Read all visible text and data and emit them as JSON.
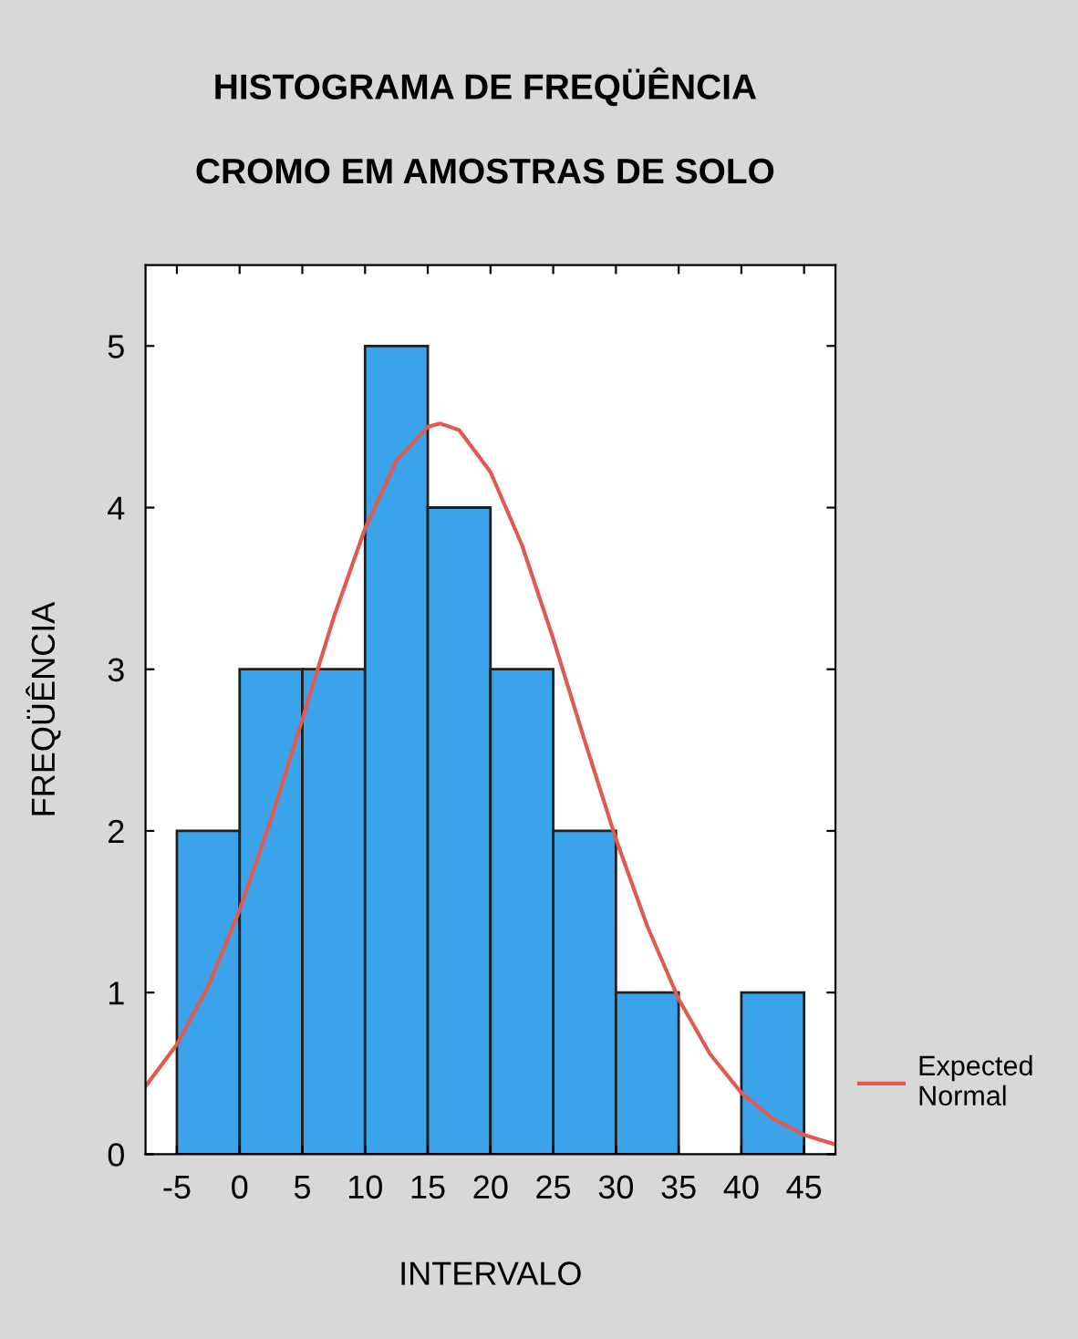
{
  "chart_data": {
    "type": "histogram",
    "title": "HISTOGRAMA DE FREQÜÊNCIA",
    "subtitle": "CROMO EM AMOSTRAS DE SOLO",
    "xlabel": "INTERVALO",
    "ylabel": "FREQÜÊNCIA",
    "bins": [
      -5,
      0,
      5,
      10,
      15,
      20,
      25,
      30,
      35,
      40,
      45
    ],
    "values": [
      2,
      3,
      3,
      5,
      4,
      3,
      2,
      1,
      0,
      1
    ],
    "color": "#3aa3ea",
    "series": [
      {
        "name": "Expected Normal",
        "type": "line",
        "color": "#e05a50",
        "x": [
          -7.5,
          -5,
          -2.5,
          0,
          2.5,
          5,
          7.5,
          10,
          12.5,
          15,
          16,
          17.5,
          20,
          22.5,
          25,
          27.5,
          30,
          32.5,
          35,
          37.5,
          40,
          42.5,
          45,
          47.5
        ],
        "values": [
          0.42,
          0.68,
          1.04,
          1.51,
          2.07,
          2.69,
          3.32,
          3.87,
          4.29,
          4.5,
          4.52,
          4.48,
          4.22,
          3.77,
          3.19,
          2.56,
          1.95,
          1.41,
          0.96,
          0.62,
          0.38,
          0.22,
          0.12,
          0.06
        ]
      }
    ],
    "xlim": [
      -7.5,
      47.5
    ],
    "xticks": [
      -5,
      0,
      5,
      10,
      15,
      20,
      25,
      30,
      35,
      40,
      45
    ],
    "ylim": [
      0,
      5.5
    ],
    "yticks": [
      0,
      1,
      2,
      3,
      4,
      5
    ],
    "grid": false,
    "legend": "right"
  }
}
